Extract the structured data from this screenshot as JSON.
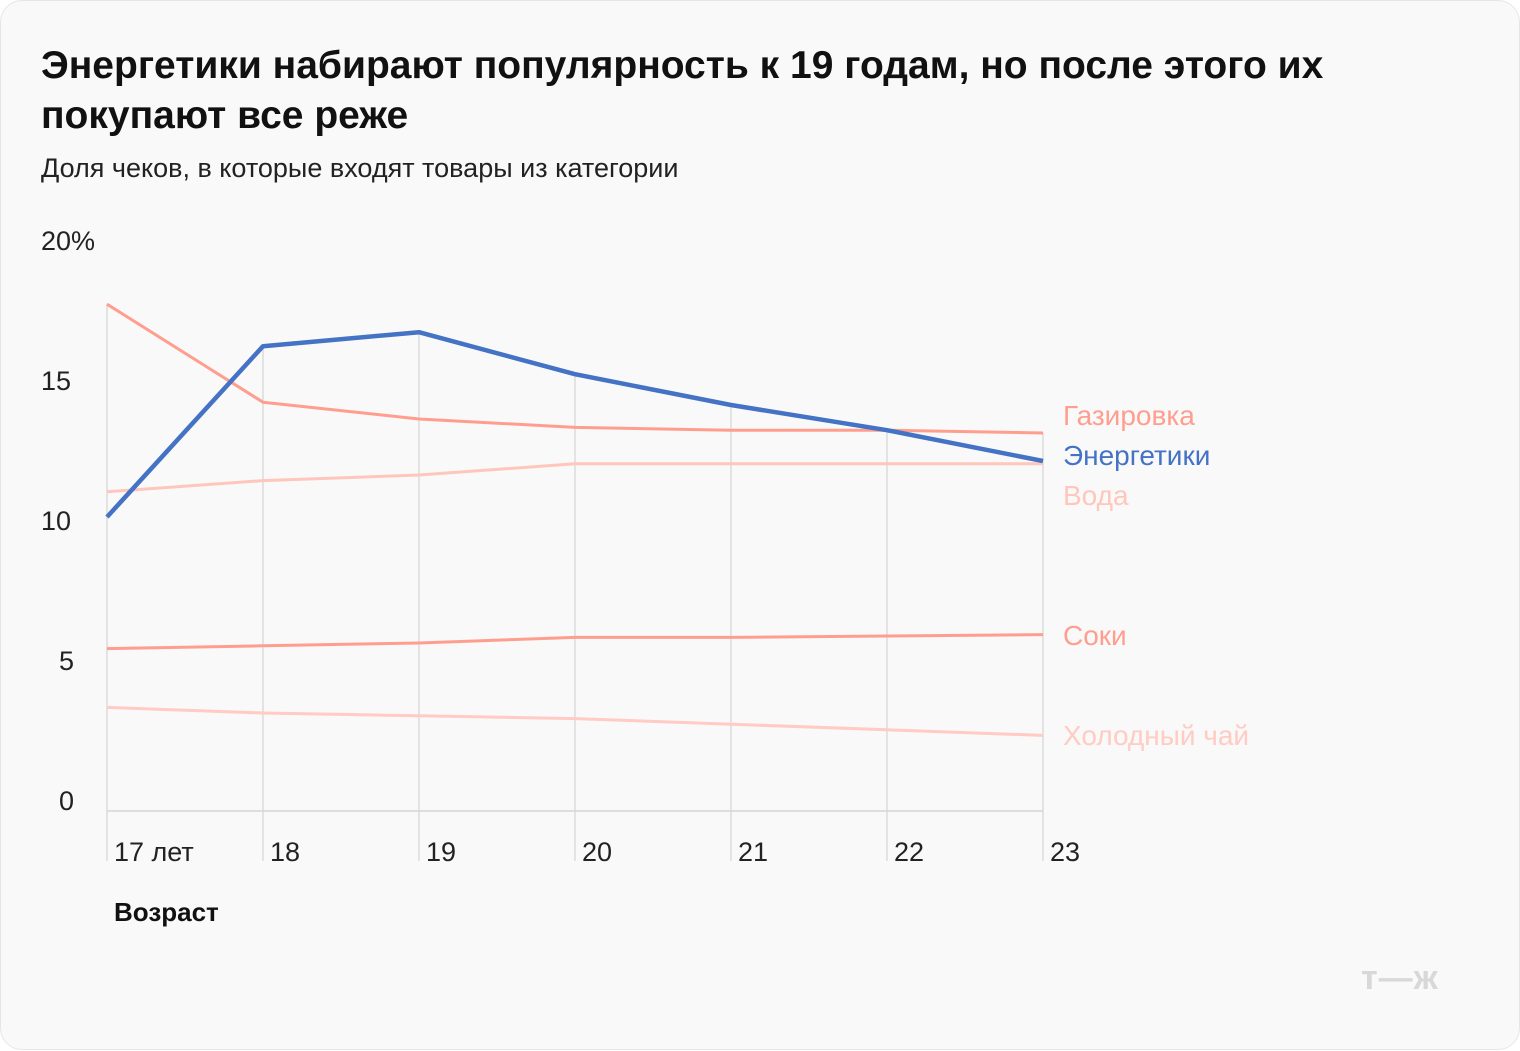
{
  "title": "Энергетики набирают популярность к 19 годам, но после этого их покупают все реже",
  "subtitle": "Доля чеков, в которые входят товары из категории",
  "logo": "т—ж",
  "chart_data": {
    "type": "line",
    "xlabel": "Возраст",
    "ylabel": "",
    "x_tick_labels": [
      "17 лет",
      "18",
      "19",
      "20",
      "21",
      "22",
      "23"
    ],
    "x": [
      17,
      18,
      19,
      20,
      21,
      22,
      23
    ],
    "y_tick_labels": [
      "0",
      "5",
      "10",
      "15",
      "20%"
    ],
    "y_ticks": [
      0,
      5,
      10,
      15,
      20
    ],
    "ylim": [
      0,
      20
    ],
    "grid": "vertical",
    "legend": "right, labels at line ends",
    "series": [
      {
        "name": "Газировка",
        "color": "#ff9e8e",
        "values": [
          18.1,
          14.6,
          14.0,
          13.7,
          13.6,
          13.6,
          13.5
        ]
      },
      {
        "name": "Энергетики",
        "color": "#4472c4",
        "values": [
          10.5,
          16.6,
          17.1,
          15.6,
          14.5,
          13.6,
          12.5
        ]
      },
      {
        "name": "Вода",
        "color": "#ffc6bc",
        "values": [
          11.4,
          11.8,
          12.0,
          12.4,
          12.4,
          12.4,
          12.4
        ]
      },
      {
        "name": "Соки",
        "color": "#ff9e8e",
        "values": [
          5.8,
          5.9,
          6.0,
          6.2,
          6.2,
          6.25,
          6.3
        ]
      },
      {
        "name": "Холодный чай",
        "color": "#ffcbc2",
        "values": [
          3.7,
          3.5,
          3.4,
          3.3,
          3.1,
          2.9,
          2.7
        ]
      }
    ]
  }
}
